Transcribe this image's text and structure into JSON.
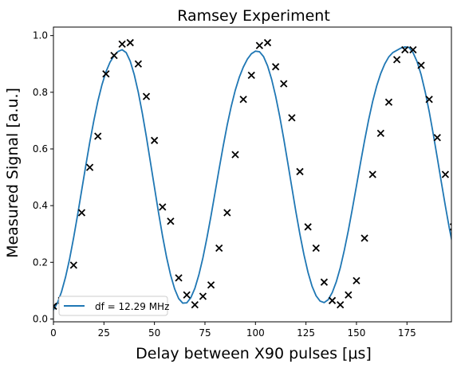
{
  "chart_data": {
    "type": "scatter",
    "title": "Ramsey Experiment",
    "xlabel": "Delay between X90 pulses [μs]",
    "ylabel": "Measured Signal [a.u.]",
    "xlim": [
      0,
      197
    ],
    "ylim": [
      -0.01,
      1.03
    ],
    "xticks": [
      0,
      25,
      50,
      75,
      100,
      125,
      150,
      175
    ],
    "yticks": [
      0.0,
      0.2,
      0.4,
      0.6,
      0.8,
      1.0
    ],
    "xtick_labels": [
      "0",
      "25",
      "50",
      "75",
      "100",
      "125",
      "150",
      "175"
    ],
    "ytick_labels": [
      "0.0",
      "0.2",
      "0.4",
      "0.6",
      "0.8",
      "1.0"
    ],
    "grid": false,
    "legend_position": "lower-left",
    "series": [
      {
        "name": "",
        "kind": "scatter",
        "marker": "x",
        "color": "#000000",
        "x": [
          0,
          4,
          10,
          14,
          18,
          22,
          26,
          30,
          34,
          38,
          42,
          46,
          50,
          54,
          58,
          62,
          66,
          70,
          74,
          78,
          82,
          86,
          90,
          94,
          98,
          102,
          106,
          110,
          114,
          118,
          122,
          126,
          130,
          134,
          138,
          142,
          146,
          150,
          154,
          158,
          162,
          166,
          170,
          174,
          178,
          182,
          186,
          190,
          194,
          198
        ],
        "y": [
          0.045,
          0.065,
          0.19,
          0.375,
          0.535,
          0.645,
          0.865,
          0.93,
          0.97,
          0.975,
          0.9,
          0.785,
          0.63,
          0.395,
          0.345,
          0.145,
          0.085,
          0.05,
          0.08,
          0.12,
          0.25,
          0.375,
          0.58,
          0.775,
          0.86,
          0.965,
          0.975,
          0.89,
          0.83,
          0.71,
          0.52,
          0.325,
          0.25,
          0.13,
          0.065,
          0.05,
          0.085,
          0.135,
          0.285,
          0.51,
          0.655,
          0.765,
          0.915,
          0.95,
          0.95,
          0.895,
          0.775,
          0.64,
          0.51,
          0.325
        ]
      },
      {
        "name": "df = 12.29 MHz",
        "kind": "line",
        "color": "#1f77b4",
        "x": [
          0,
          2,
          4,
          6,
          8,
          10,
          12,
          14,
          16,
          18,
          20,
          22,
          24,
          26,
          28,
          30,
          32,
          34,
          36,
          38,
          40,
          42,
          44,
          46,
          48,
          50,
          52,
          54,
          56,
          58,
          60,
          62,
          64,
          66,
          68,
          70,
          72,
          74,
          76,
          78,
          80,
          82,
          84,
          86,
          88,
          90,
          92,
          94,
          96,
          98,
          100,
          102,
          104,
          106,
          108,
          110,
          112,
          114,
          116,
          118,
          120,
          122,
          124,
          126,
          128,
          130,
          132,
          134,
          136,
          138,
          140,
          142,
          144,
          146,
          148,
          150,
          152,
          154,
          156,
          158,
          160,
          162,
          164,
          166,
          168,
          170,
          172,
          174,
          176,
          178,
          180,
          182,
          184,
          186,
          188,
          190,
          192,
          194,
          196,
          198
        ],
        "y": [
          0.032,
          0.057,
          0.096,
          0.148,
          0.212,
          0.287,
          0.369,
          0.455,
          0.541,
          0.624,
          0.7,
          0.769,
          0.826,
          0.872,
          0.906,
          0.929,
          0.944,
          0.95,
          0.94,
          0.91,
          0.862,
          0.8,
          0.726,
          0.643,
          0.554,
          0.465,
          0.376,
          0.293,
          0.218,
          0.155,
          0.106,
          0.072,
          0.056,
          0.057,
          0.075,
          0.108,
          0.156,
          0.216,
          0.287,
          0.364,
          0.446,
          0.529,
          0.609,
          0.684,
          0.75,
          0.807,
          0.853,
          0.889,
          0.917,
          0.936,
          0.945,
          0.943,
          0.926,
          0.893,
          0.846,
          0.786,
          0.715,
          0.636,
          0.551,
          0.465,
          0.379,
          0.299,
          0.227,
          0.165,
          0.116,
          0.082,
          0.063,
          0.058,
          0.068,
          0.093,
          0.131,
          0.181,
          0.243,
          0.313,
          0.39,
          0.47,
          0.551,
          0.629,
          0.702,
          0.767,
          0.822,
          0.866,
          0.9,
          0.925,
          0.94,
          0.948,
          0.956,
          0.96,
          0.958,
          0.94,
          0.908,
          0.862,
          0.802,
          0.732,
          0.653,
          0.569,
          0.483,
          0.399,
          0.319,
          0.248
        ]
      }
    ]
  }
}
